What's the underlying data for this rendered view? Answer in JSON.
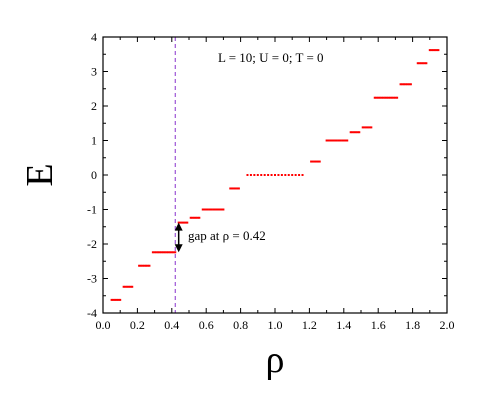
{
  "chart_data": {
    "type": "scatter",
    "title": "",
    "xlabel": "ρ",
    "ylabel": "E",
    "xlim": [
      0.0,
      2.0
    ],
    "ylim": [
      -4,
      4
    ],
    "xticks": [
      0.0,
      0.2,
      0.4,
      0.6,
      0.8,
      1.0,
      1.2,
      1.4,
      1.6,
      1.8,
      2.0
    ],
    "xtick_labels": [
      "0.0",
      "0.2",
      "0.4",
      "0.6",
      "0.8",
      "1.0",
      "1.2",
      "1.4",
      "1.6",
      "1.8",
      "2.0"
    ],
    "yticks": [
      -4,
      -3,
      -2,
      -1,
      0,
      1,
      2,
      3,
      4
    ],
    "ytick_labels": [
      "-4",
      "-3",
      "-2",
      "-1",
      "0",
      "1",
      "2",
      "3",
      "4"
    ],
    "grid": false,
    "colors": {
      "points": "#ff0000",
      "gap_line": "#8833cc",
      "arrow": "#000000"
    },
    "series": [
      {
        "levels": [
          {
            "e": -3.62,
            "x": [
              0.05,
              0.06,
              0.07,
              0.08,
              0.09,
              0.1
            ]
          },
          {
            "e": -3.24,
            "x": [
              0.12,
              0.13,
              0.14,
              0.15,
              0.16,
              0.17
            ]
          },
          {
            "e": -2.63,
            "x": [
              0.21,
              0.22,
              0.23,
              0.24,
              0.25,
              0.26,
              0.27
            ]
          },
          {
            "e": -2.24,
            "x": [
              0.29,
              0.3,
              0.31,
              0.32,
              0.33,
              0.34,
              0.35,
              0.36,
              0.37,
              0.38,
              0.39,
              0.4,
              0.41,
              0.42
            ]
          },
          {
            "e": -1.38,
            "x": [
              0.44,
              0.45,
              0.46,
              0.47,
              0.48,
              0.49
            ]
          },
          {
            "e": -1.24,
            "x": [
              0.51,
              0.52,
              0.53,
              0.54,
              0.55,
              0.56
            ]
          },
          {
            "e": -1.0,
            "x": [
              0.58,
              0.59,
              0.6,
              0.61,
              0.62,
              0.63,
              0.64,
              0.65,
              0.66,
              0.67,
              0.68,
              0.69,
              0.7
            ]
          },
          {
            "e": -0.39,
            "x": [
              0.74,
              0.75,
              0.76,
              0.77,
              0.78,
              0.79
            ]
          },
          {
            "e": 0.0,
            "x": [
              0.84,
              0.86,
              0.88,
              0.9,
              0.92,
              0.94,
              0.96,
              0.98,
              1.0,
              1.02,
              1.04,
              1.06,
              1.08,
              1.1,
              1.12,
              1.14,
              1.16
            ]
          },
          {
            "e": 0.39,
            "x": [
              1.21,
              1.22,
              1.23,
              1.24,
              1.25,
              1.26
            ]
          },
          {
            "e": 1.0,
            "x": [
              1.3,
              1.31,
              1.32,
              1.33,
              1.34,
              1.35,
              1.36,
              1.37,
              1.38,
              1.39,
              1.4,
              1.41,
              1.42
            ]
          },
          {
            "e": 1.24,
            "x": [
              1.44,
              1.45,
              1.46,
              1.47,
              1.48,
              1.49
            ]
          },
          {
            "e": 1.38,
            "x": [
              1.51,
              1.52,
              1.53,
              1.54,
              1.55,
              1.56
            ]
          },
          {
            "e": 2.24,
            "x": [
              1.58,
              1.59,
              1.6,
              1.61,
              1.62,
              1.63,
              1.64,
              1.65,
              1.66,
              1.67,
              1.68,
              1.69,
              1.7,
              1.71
            ]
          },
          {
            "e": 2.63,
            "x": [
              1.73,
              1.74,
              1.75,
              1.76,
              1.77,
              1.78,
              1.79
            ]
          },
          {
            "e": 3.24,
            "x": [
              1.83,
              1.84,
              1.85,
              1.86,
              1.87,
              1.88
            ]
          },
          {
            "e": 3.62,
            "x": [
              1.9,
              1.91,
              1.92,
              1.93,
              1.94,
              1.95
            ]
          }
        ]
      }
    ],
    "vline": {
      "x": 0.42,
      "style": "dashed"
    },
    "gap_arrow": {
      "x": 0.44,
      "y_from": -2.24,
      "y_to": -1.38
    },
    "annotations": {
      "params": "L = 10;  U = 0;  T = 0",
      "gap": "gap at ρ = 0.42"
    }
  }
}
